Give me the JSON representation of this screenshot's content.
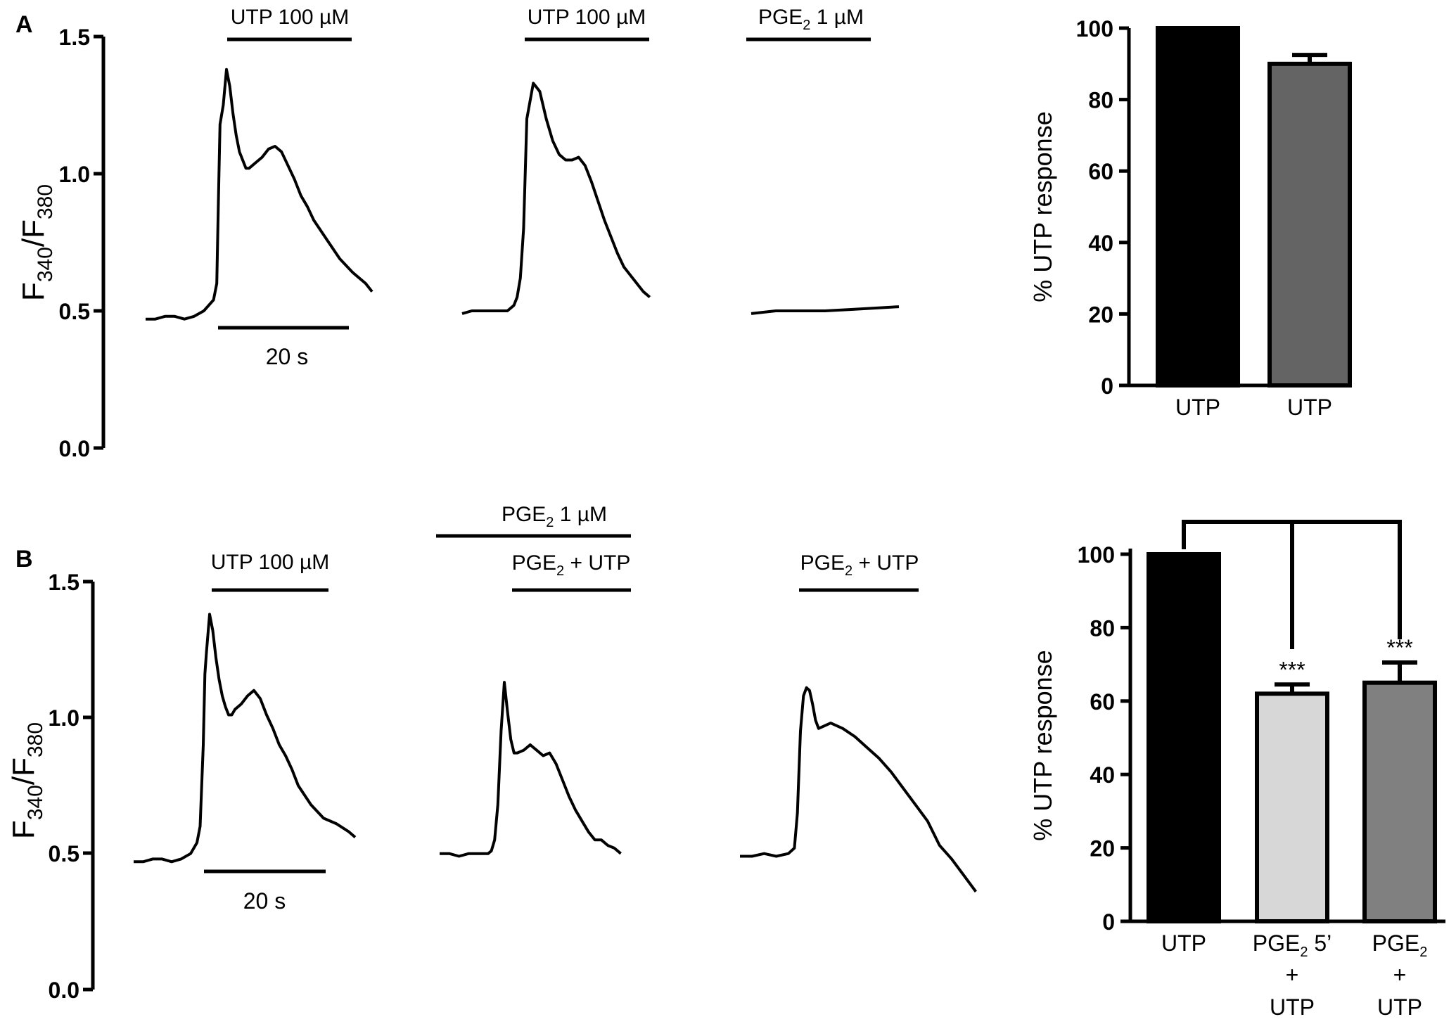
{
  "chart_data": [
    {
      "panel": "A",
      "type": "line",
      "ylabel": "F340/F380",
      "ylabel_parts": {
        "main1": "F",
        "sub1": "340",
        "main2": "/F",
        "sub2": "380"
      },
      "ylim": [
        0.0,
        1.5
      ],
      "yticks": [
        0.0,
        0.5,
        1.0,
        1.5
      ],
      "ytick_labels": [
        "0.0",
        "0.5",
        "1.0",
        "1.5"
      ],
      "scale_bar_label": "20 s",
      "traces": [
        {
          "name": "UTP",
          "x": [
            0,
            3,
            6,
            9,
            12,
            15,
            18,
            21,
            22,
            22.5,
            23,
            24,
            25,
            26,
            27,
            28,
            29,
            30,
            31,
            32,
            34,
            36,
            38,
            40,
            42,
            44,
            46,
            48,
            50,
            52,
            56,
            60,
            64,
            68,
            70
          ],
          "y": [
            0.47,
            0.47,
            0.48,
            0.48,
            0.47,
            0.48,
            0.5,
            0.54,
            0.6,
            0.9,
            1.18,
            1.25,
            1.38,
            1.32,
            1.22,
            1.14,
            1.08,
            1.05,
            1.02,
            1.02,
            1.04,
            1.06,
            1.09,
            1.1,
            1.08,
            1.03,
            0.98,
            0.92,
            0.88,
            0.83,
            0.76,
            0.69,
            0.64,
            0.6,
            0.57
          ],
          "stimuli": [
            {
              "label": "UTP 100 µM"
            }
          ]
        },
        {
          "name": "UTP (second application)",
          "x": [
            0,
            3,
            6,
            9,
            12,
            14,
            15,
            16,
            17,
            18,
            19,
            20,
            22,
            24,
            26,
            28,
            30,
            32,
            34,
            36,
            38,
            40,
            42,
            44,
            46,
            48,
            50,
            52,
            54,
            56,
            58
          ],
          "y": [
            0.49,
            0.5,
            0.5,
            0.5,
            0.5,
            0.5,
            0.51,
            0.52,
            0.55,
            0.62,
            0.8,
            1.2,
            1.33,
            1.3,
            1.2,
            1.12,
            1.07,
            1.05,
            1.05,
            1.06,
            1.03,
            0.97,
            0.9,
            0.83,
            0.77,
            0.71,
            0.66,
            0.63,
            0.6,
            0.57,
            0.55
          ],
          "stimuli": [
            {
              "label": "UTP 100 µM"
            }
          ]
        },
        {
          "name": "PGE2",
          "x": [
            0,
            10,
            20,
            30,
            40,
            50,
            60
          ],
          "y": [
            0.49,
            0.5,
            0.5,
            0.5,
            0.505,
            0.51,
            0.515
          ],
          "stimuli": [
            {
              "label_main": "PGE",
              "label_sub": "2",
              "label_rest": " 1 µM"
            }
          ]
        }
      ]
    },
    {
      "panel": "A",
      "type": "bar",
      "ylabel": "% UTP response",
      "ylim": [
        0,
        100
      ],
      "yticks": [
        0,
        20,
        40,
        60,
        80,
        100
      ],
      "categories": [
        "UTP",
        "UTP"
      ],
      "category_lines": [
        [
          "UTP"
        ],
        [
          "UTP"
        ]
      ],
      "values": [
        100,
        90
      ],
      "errors": [
        0,
        2.5
      ],
      "colors": [
        "#000000",
        "#646464"
      ]
    },
    {
      "panel": "B",
      "type": "line",
      "ylabel": "F340/F380",
      "ylabel_parts": {
        "main1": "F",
        "sub1": "340",
        "main2": "/F",
        "sub2": "380"
      },
      "ylim": [
        0.0,
        1.5
      ],
      "yticks": [
        0.0,
        0.5,
        1.0,
        1.5
      ],
      "ytick_labels": [
        "0.0",
        "0.5",
        "1.0",
        "1.5"
      ],
      "scale_bar_label": "20 s",
      "pretreatment": {
        "label_main": "PGE",
        "label_sub": "2",
        "label_rest": " 1 µM"
      },
      "traces": [
        {
          "name": "UTP",
          "x": [
            0,
            3,
            6,
            9,
            12,
            15,
            18,
            20,
            21,
            22,
            22.5,
            23,
            24,
            25,
            26,
            27,
            28,
            29,
            30,
            31,
            32,
            34,
            36,
            38,
            40,
            42,
            44,
            46,
            48,
            50,
            52,
            56,
            60,
            64,
            68,
            70
          ],
          "y": [
            0.47,
            0.47,
            0.48,
            0.48,
            0.47,
            0.48,
            0.5,
            0.54,
            0.6,
            0.9,
            1.16,
            1.24,
            1.38,
            1.32,
            1.22,
            1.14,
            1.08,
            1.04,
            1.01,
            1.01,
            1.03,
            1.05,
            1.08,
            1.1,
            1.07,
            1.01,
            0.96,
            0.9,
            0.86,
            0.81,
            0.75,
            0.68,
            0.63,
            0.61,
            0.58,
            0.56
          ],
          "stimuli": [
            {
              "label": "UTP 100 µM"
            }
          ]
        },
        {
          "name": "PGE2 5' + UTP",
          "x": [
            0,
            3,
            6,
            9,
            12,
            14,
            15,
            16,
            17,
            18,
            19,
            20,
            21,
            22,
            23,
            24,
            26,
            28,
            30,
            32,
            34,
            36,
            38,
            40,
            42,
            44,
            46,
            48,
            50,
            52,
            54,
            56
          ],
          "y": [
            0.5,
            0.5,
            0.49,
            0.5,
            0.5,
            0.5,
            0.5,
            0.51,
            0.55,
            0.68,
            0.95,
            1.13,
            1.02,
            0.92,
            0.87,
            0.87,
            0.88,
            0.9,
            0.88,
            0.86,
            0.87,
            0.83,
            0.77,
            0.71,
            0.66,
            0.62,
            0.58,
            0.55,
            0.55,
            0.53,
            0.52,
            0.5
          ],
          "stimuli": [
            {
              "label_main": "PGE",
              "label_sub": "2",
              "label_rest": " + UTP"
            }
          ]
        },
        {
          "name": "PGE2 + UTP",
          "x": [
            0,
            4,
            8,
            12,
            16,
            18,
            19,
            20,
            21,
            22,
            23,
            24,
            25,
            26,
            28,
            30,
            32,
            34,
            38,
            42,
            46,
            50,
            54,
            58,
            62,
            66,
            70,
            74,
            78
          ],
          "y": [
            0.49,
            0.49,
            0.5,
            0.49,
            0.5,
            0.52,
            0.65,
            0.95,
            1.08,
            1.11,
            1.1,
            1.05,
            0.99,
            0.96,
            0.97,
            0.98,
            0.97,
            0.96,
            0.93,
            0.89,
            0.85,
            0.8,
            0.74,
            0.68,
            0.62,
            0.53,
            0.48,
            0.42,
            0.36
          ],
          "stimuli": [
            {
              "label_main": "PGE",
              "label_sub": "2",
              "label_rest": " + UTP"
            }
          ]
        }
      ]
    },
    {
      "panel": "B",
      "type": "bar",
      "ylabel": "% UTP response",
      "ylim": [
        0,
        100
      ],
      "yticks": [
        0,
        20,
        40,
        60,
        80,
        100
      ],
      "categories": [
        "UTP",
        "PGE2 5' + UTP",
        "PGE2 + UTP"
      ],
      "category_lines": [
        [
          "UTP"
        ],
        [
          "PGE",
          "2",
          " 5’",
          "+",
          "UTP"
        ],
        [
          "PGE",
          "2",
          "",
          "+",
          "UTP"
        ]
      ],
      "values": [
        100,
        62,
        65
      ],
      "errors": [
        0,
        2.5,
        5.5
      ],
      "colors": [
        "#000000",
        "#d7d7d7",
        "#808080"
      ],
      "significance": [
        "",
        "***",
        "***"
      ]
    }
  ],
  "panel_labels": [
    "A",
    "B"
  ]
}
